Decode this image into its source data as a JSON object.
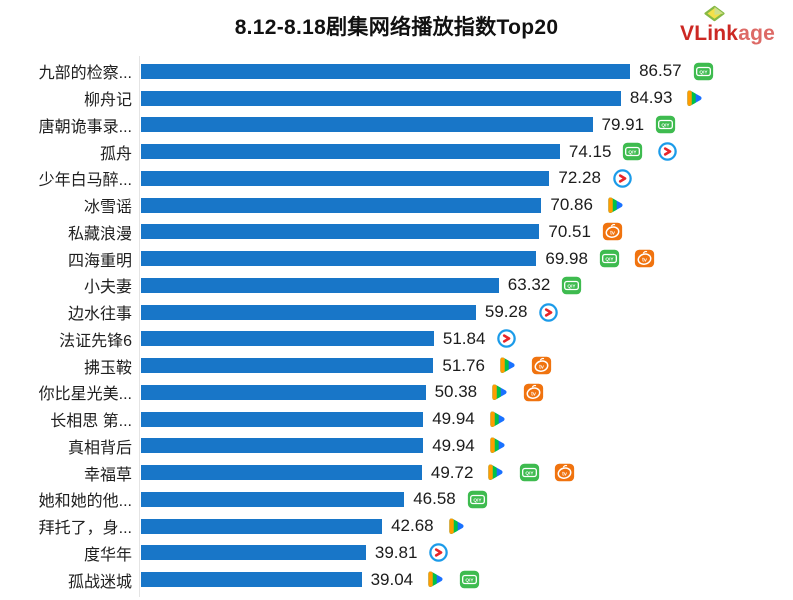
{
  "header": {
    "title": "8.12-8.18剧集网络播放指数Top20",
    "logo": {
      "bold": "VLink",
      "light": "age",
      "text_color": "#cc2823",
      "light_color": "#dd6a66"
    }
  },
  "chart_data": {
    "type": "bar",
    "orientation": "horizontal",
    "title": "8.12-8.18剧集网络播放指数Top20",
    "bar_color": "#1876c8",
    "axis_line_color": "#e4e4e4",
    "grid": false,
    "legend": false,
    "value_labels_shown": true,
    "rows": [
      {
        "label": "九部的检察...",
        "value": 86.57,
        "platforms": [
          "iqiyi"
        ]
      },
      {
        "label": "柳舟记",
        "value": 84.93,
        "platforms": [
          "tencent"
        ]
      },
      {
        "label": "唐朝诡事录...",
        "value": 79.91,
        "platforms": [
          "iqiyi"
        ]
      },
      {
        "label": "孤舟",
        "value": 74.15,
        "platforms": [
          "iqiyi",
          "youku"
        ]
      },
      {
        "label": "少年白马醉...",
        "value": 72.28,
        "platforms": [
          "youku"
        ]
      },
      {
        "label": "冰雪谣",
        "value": 70.86,
        "platforms": [
          "tencent"
        ]
      },
      {
        "label": "私藏浪漫",
        "value": 70.51,
        "platforms": [
          "mgtv"
        ]
      },
      {
        "label": "四海重明",
        "value": 69.98,
        "platforms": [
          "iqiyi",
          "mgtv"
        ]
      },
      {
        "label": "小夫妻",
        "value": 63.32,
        "platforms": [
          "iqiyi"
        ]
      },
      {
        "label": "边水往事",
        "value": 59.28,
        "platforms": [
          "youku"
        ]
      },
      {
        "label": "法证先锋6",
        "value": 51.84,
        "platforms": [
          "youku"
        ]
      },
      {
        "label": "拂玉鞍",
        "value": 51.76,
        "platforms": [
          "tencent",
          "mgtv"
        ]
      },
      {
        "label": "你比星光美...",
        "value": 50.38,
        "platforms": [
          "tencent",
          "mgtv"
        ]
      },
      {
        "label": "长相思 第...",
        "value": 49.94,
        "platforms": [
          "tencent"
        ]
      },
      {
        "label": "真相背后",
        "value": 49.94,
        "platforms": [
          "tencent"
        ]
      },
      {
        "label": "幸福草",
        "value": 49.72,
        "platforms": [
          "tencent",
          "iqiyi",
          "mgtv"
        ]
      },
      {
        "label": "她和她的他...",
        "value": 46.58,
        "platforms": [
          "iqiyi"
        ]
      },
      {
        "label": "拜托了，身...",
        "value": 42.68,
        "platforms": [
          "tencent"
        ]
      },
      {
        "label": "度华年",
        "value": 39.81,
        "platforms": [
          "youku"
        ]
      },
      {
        "label": "孤战迷城",
        "value": 39.04,
        "platforms": [
          "tencent",
          "iqiyi"
        ]
      }
    ]
  },
  "icons": {
    "iqiyi": {
      "name": "iqiyi-icon",
      "color": "#3ebb4f",
      "glyph": "QIY"
    },
    "tencent": {
      "name": "tencent-video-icon",
      "colors": [
        "#ff9c00",
        "#00c247",
        "#1971ff"
      ]
    },
    "youku": {
      "name": "youku-icon",
      "colors": [
        "#1b9be9",
        "#e8262a"
      ]
    },
    "mgtv": {
      "name": "mgtv-icon",
      "color": "#f0730f",
      "glyph": "tv"
    },
    "vlinkage_diamond": {
      "name": "vlinkage-diamond-icon",
      "fill": "#f3e04a",
      "stroke": "#86b944"
    }
  }
}
